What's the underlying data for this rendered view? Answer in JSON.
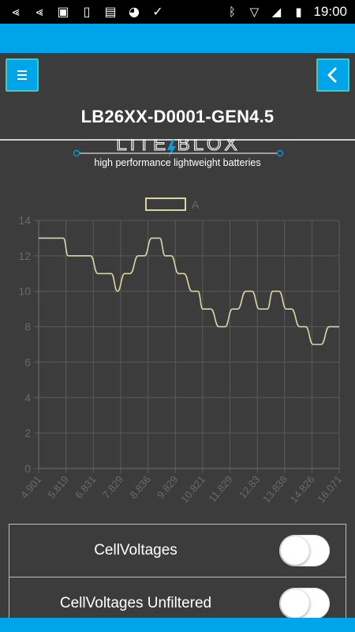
{
  "status_bar": {
    "left_icons": [
      "back-arrow-icon",
      "back-arrow-icon",
      "image-icon",
      "phone-icon",
      "android-icon",
      "shield-icon",
      "check-badge-icon"
    ],
    "right_icons": [
      "bluetooth-icon",
      "wifi-off-icon",
      "signal-icon",
      "battery-icon"
    ],
    "time": "19:00"
  },
  "header": {
    "device_name": "LB26XX-D0001-GEN4.5",
    "menu_icon": "menu-icon",
    "back_icon": "chevron-left-icon"
  },
  "logo": {
    "brand": "LITE BLOX",
    "tagline": "high performance lightweight batteries"
  },
  "colors": {
    "accent": "#00a4e8",
    "background": "#3c3c3c",
    "line": "#d9d6a3",
    "grid": "#5a5a5a",
    "tick": "#6a6a6a"
  },
  "chart_data": {
    "type": "line",
    "series": [
      {
        "name": "A",
        "x": [
          4.901,
          5.2,
          5.5,
          5.819,
          6.0,
          6.3,
          6.6,
          6.831,
          7.1,
          7.4,
          7.6,
          7.829,
          8.1,
          8.3,
          8.6,
          8.836,
          9.1,
          9.4,
          9.6,
          9.829,
          10.1,
          10.3,
          10.6,
          10.821,
          11.0,
          11.3,
          11.6,
          11.829,
          12.1,
          12.3,
          12.6,
          12.83,
          13.1,
          13.4,
          13.6,
          13.838,
          14.1,
          14.3,
          14.6,
          14.826,
          15.1,
          15.4,
          15.7,
          16.071
        ],
        "values": [
          13,
          13,
          13,
          13,
          12,
          12,
          12,
          12,
          11,
          11,
          11,
          10,
          11,
          11,
          12,
          12,
          13,
          13,
          12,
          12,
          11,
          11,
          10,
          10,
          9,
          9,
          8,
          8,
          9,
          9,
          10,
          10,
          9,
          9,
          10,
          10,
          9,
          9,
          8,
          8,
          7,
          7,
          8,
          8
        ]
      }
    ],
    "x_tick_labels": [
      "4.901",
      "5.819",
      "6.831",
      "7.829",
      "8.836",
      "9.829",
      "10.821",
      "11.829",
      "12.83",
      "13.838",
      "14.826",
      "16.071"
    ],
    "y_ticks": [
      0,
      2,
      4,
      6,
      8,
      10,
      12,
      14
    ],
    "ylim": [
      0,
      14
    ],
    "grid": true,
    "legend_position": "top-center"
  },
  "toggles": [
    {
      "label": "CellVoltages",
      "on": false
    },
    {
      "label": "CellVoltages Unfiltered",
      "on": false
    }
  ]
}
